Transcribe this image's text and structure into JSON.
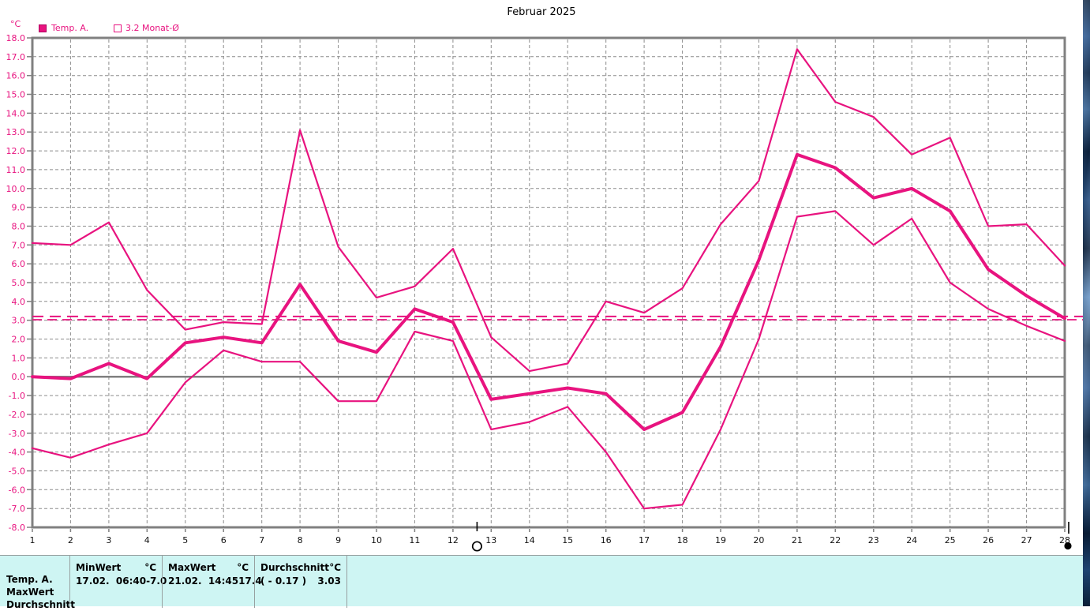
{
  "title": "Februar 2025",
  "y_axis_unit": "°C",
  "legend": {
    "temp_label": "Temp. A.",
    "monthly_avg_label": "3.2 Monat-Ø"
  },
  "chart_data": {
    "type": "line",
    "title": "Februar 2025",
    "xlabel": "",
    "ylabel": "°C",
    "ylim": [
      -8.0,
      18.0
    ],
    "ytick_step": 1.0,
    "grid": true,
    "legend_position": "top-left",
    "line_color": "#E8137F",
    "x_days": [
      1,
      2,
      3,
      4,
      5,
      6,
      7,
      8,
      9,
      10,
      11,
      12,
      13,
      14,
      15,
      16,
      17,
      18,
      19,
      20,
      21,
      22,
      23,
      24,
      25,
      26,
      27,
      28
    ],
    "series": [
      {
        "name": "max",
        "values": [
          7.1,
          7.0,
          8.2,
          4.6,
          2.5,
          2.9,
          2.8,
          13.1,
          6.9,
          4.2,
          4.8,
          6.8,
          2.1,
          0.3,
          0.7,
          4.0,
          3.4,
          4.7,
          8.1,
          10.4,
          17.4,
          14.6,
          13.8,
          11.8,
          12.7,
          8.0,
          8.1,
          5.9
        ]
      },
      {
        "name": "temp-avg",
        "values": [
          0.0,
          -0.1,
          0.7,
          -0.1,
          1.8,
          2.1,
          1.8,
          4.9,
          1.9,
          1.3,
          3.6,
          2.9,
          -1.2,
          -0.9,
          -0.6,
          -0.9,
          -2.8,
          -1.9,
          1.6,
          6.2,
          11.8,
          11.1,
          9.5,
          10.0,
          8.8,
          5.7,
          4.3,
          3.1
        ]
      },
      {
        "name": "min",
        "values": [
          -3.8,
          -4.3,
          -3.6,
          -3.0,
          -0.3,
          1.4,
          0.8,
          0.8,
          -1.3,
          -1.3,
          2.4,
          1.9,
          -2.8,
          -2.4,
          -1.6,
          -4.0,
          -7.0,
          -6.8,
          -2.8,
          2.0,
          8.5,
          8.8,
          7.0,
          8.4,
          5.0,
          3.6,
          2.7,
          1.9
        ]
      }
    ],
    "reference_lines": [
      {
        "name": "monat-avg",
        "label": "3.2 Monat-Ø",
        "value": 3.2
      },
      {
        "name": "durchschnitt",
        "label": "Durchschnitt",
        "value": 3.03
      }
    ]
  },
  "markers": {
    "open_marker_day": 12.63,
    "end_marker_day": 28
  },
  "table": {
    "row_labels": [
      "Temp. A.",
      "MaxWert",
      "Durchschnitt"
    ],
    "columns": [
      {
        "header": "MinWert",
        "unit": "°C",
        "detail": "17.02.  06:40",
        "value": "-7.0"
      },
      {
        "header": "MaxWert",
        "unit": "°C",
        "detail": "21.02.  14:45",
        "value": "17.4"
      },
      {
        "header": "Durchschnitt",
        "unit": "°C",
        "detail": "( - 0.17 )",
        "value": "3.03"
      }
    ]
  },
  "colors": {
    "accent": "#E8137F",
    "grid": "#8C8C8C",
    "axis": "#808080",
    "table_bg": "#CEF5F3",
    "wallpaper_base": "#14345C"
  }
}
